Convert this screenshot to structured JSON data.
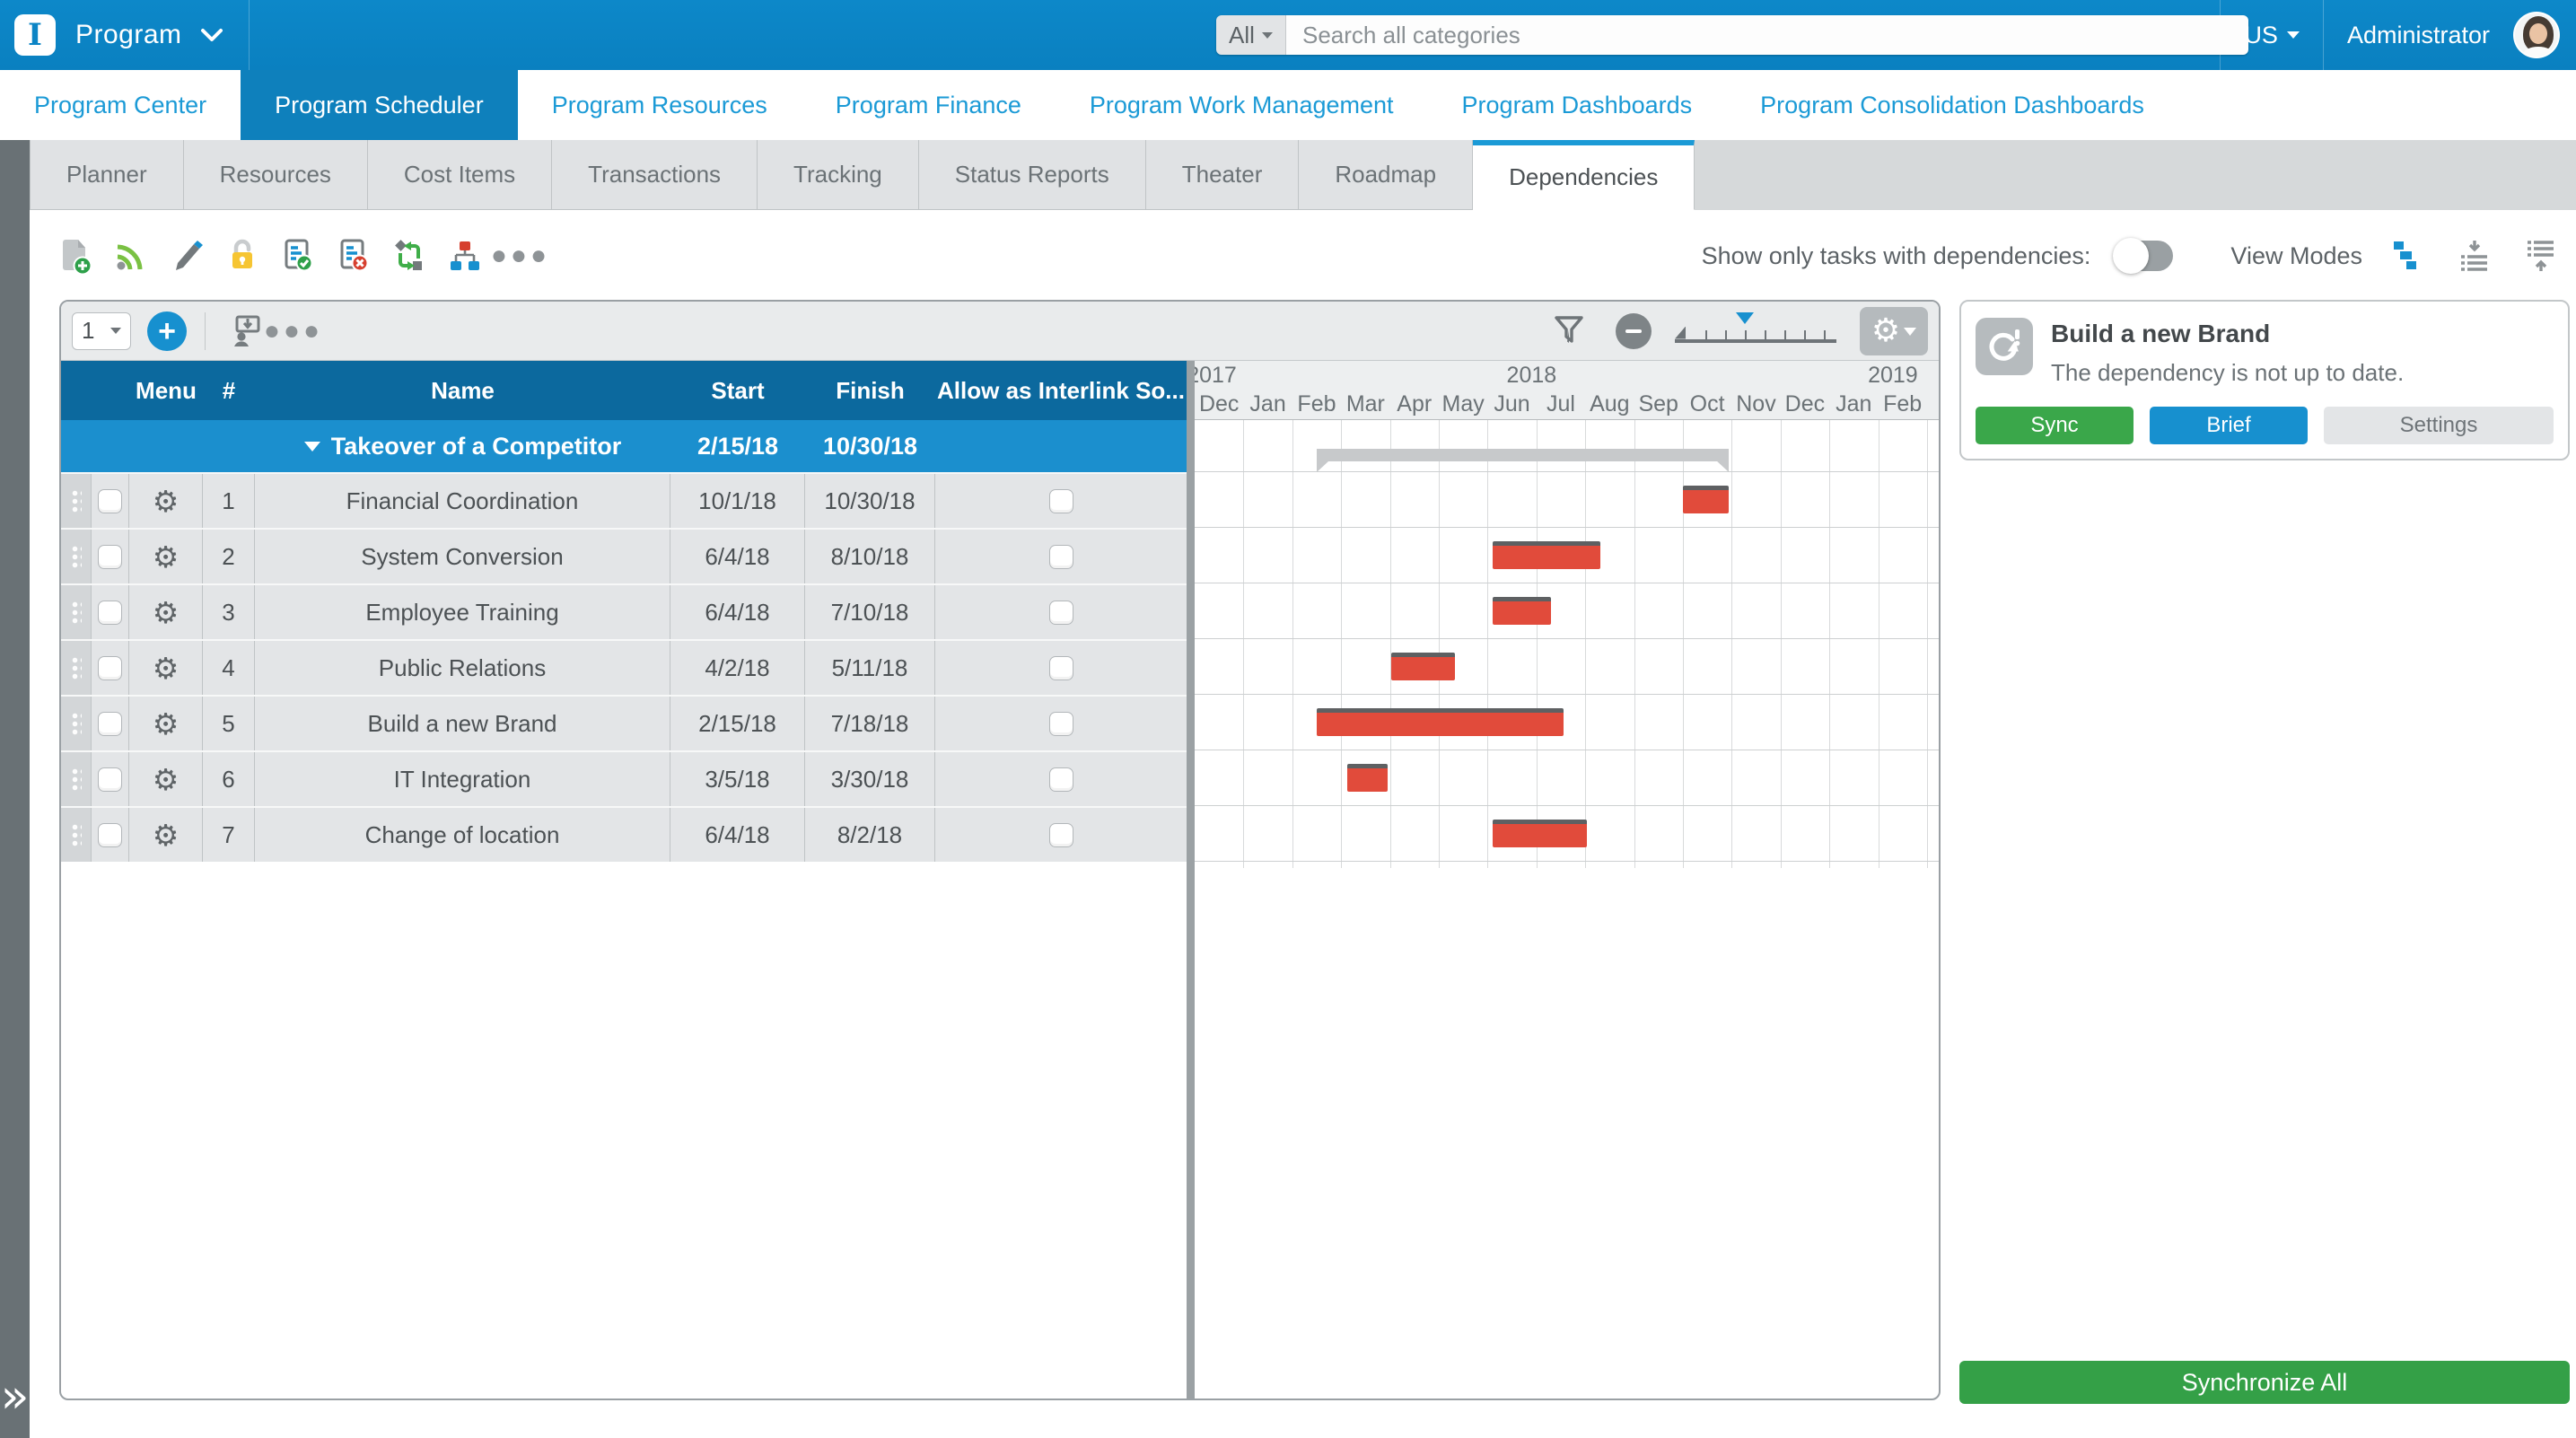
{
  "topbar": {
    "app": "Program",
    "search_scope": "All",
    "search_placeholder": "Search all categories",
    "locale": "US",
    "user": "Administrator",
    "icons": [
      "app-logo",
      "chevron-down-icon",
      "scope-caret-icon",
      "locale-caret-icon",
      "avatar"
    ]
  },
  "nav": {
    "tabs": [
      {
        "label": "Program Center",
        "active": false
      },
      {
        "label": "Program Scheduler",
        "active": true
      },
      {
        "label": "Program Resources",
        "active": false
      },
      {
        "label": "Program Finance",
        "active": false
      },
      {
        "label": "Program Work Management",
        "active": false
      },
      {
        "label": "Program Dashboards",
        "active": false
      },
      {
        "label": "Program Consolidation Dashboards",
        "active": false
      }
    ]
  },
  "subnav": {
    "tabs": [
      {
        "label": "Planner",
        "active": false
      },
      {
        "label": "Resources",
        "active": false
      },
      {
        "label": "Cost Items",
        "active": false
      },
      {
        "label": "Transactions",
        "active": false
      },
      {
        "label": "Tracking",
        "active": false
      },
      {
        "label": "Status Reports",
        "active": false
      },
      {
        "label": "Theater",
        "active": false
      },
      {
        "label": "Roadmap",
        "active": false
      },
      {
        "label": "Dependencies",
        "active": true
      }
    ]
  },
  "toolbar": {
    "icons": [
      "add-document-icon",
      "feed-icon",
      "edit-pencil-icon",
      "lock-icon",
      "approve-document-icon",
      "reject-document-icon",
      "reorder-icon",
      "hierarchy-icon",
      "more-icon"
    ],
    "show_only_label": "Show only tasks with dependencies:",
    "show_only_on": false,
    "view_modes_label": "View Modes",
    "view_mode_icons": [
      "gantt-view-icon",
      "import-baseline-icon",
      "export-baseline-icon"
    ]
  },
  "grid_toolbar": {
    "level_selector": "1",
    "icons": [
      "add-button",
      "import-user-icon",
      "more-icon",
      "filter-funnel-icon",
      "zoom-out-icon",
      "zoom-slider",
      "gantt-settings-gear-icon"
    ]
  },
  "table": {
    "columns": {
      "menu": "Menu",
      "num": "#",
      "name": "Name",
      "start": "Start",
      "finish": "Finish",
      "allow": "Allow as Interlink So..."
    },
    "group_row": {
      "name": "Takeover of a Competitor",
      "start": "2/15/18",
      "finish": "10/30/18",
      "gantt_start": 2.5,
      "gantt_end": 10.94
    },
    "rows": [
      {
        "num": "1",
        "name": "Financial Coordination",
        "start": "10/1/18",
        "finish": "10/30/18",
        "allow": false,
        "gantt_start": 10.0,
        "gantt_end": 10.94
      },
      {
        "num": "2",
        "name": "System Conversion",
        "start": "6/4/18",
        "finish": "8/10/18",
        "allow": false,
        "gantt_start": 6.1,
        "gantt_end": 8.31
      },
      {
        "num": "3",
        "name": "Employee Training",
        "start": "6/4/18",
        "finish": "7/10/18",
        "allow": false,
        "gantt_start": 6.1,
        "gantt_end": 7.3
      },
      {
        "num": "4",
        "name": "Public Relations",
        "start": "4/2/18",
        "finish": "5/11/18",
        "allow": false,
        "gantt_start": 4.03,
        "gantt_end": 5.33
      },
      {
        "num": "5",
        "name": "Build a new Brand",
        "start": "2/15/18",
        "finish": "7/18/18",
        "allow": false,
        "gantt_start": 2.5,
        "gantt_end": 7.56
      },
      {
        "num": "6",
        "name": "IT Integration",
        "start": "3/5/18",
        "finish": "3/30/18",
        "allow": false,
        "gantt_start": 3.13,
        "gantt_end": 3.95
      },
      {
        "num": "7",
        "name": "Change of location",
        "start": "6/4/18",
        "finish": "8/2/18",
        "allow": false,
        "gantt_start": 6.1,
        "gantt_end": 8.04
      }
    ]
  },
  "gantt": {
    "years": [
      {
        "label": "2017",
        "center_month": 0.35
      },
      {
        "label": "2018",
        "center_month": 6.9
      },
      {
        "label": "2019",
        "center_month": 14.3
      }
    ],
    "months": [
      "Dec",
      "Jan",
      "Feb",
      "Mar",
      "Apr",
      "May",
      "Jun",
      "Jul",
      "Aug",
      "Sep",
      "Oct",
      "Nov",
      "Dec",
      "Jan",
      "Feb"
    ],
    "bar_color": "#e14b3b",
    "summary_color": "#c7c9cb"
  },
  "dependency_panel": {
    "icon": "sync-alert-icon",
    "title": "Build a new Brand",
    "message": "The dependency is not up to date.",
    "buttons": [
      {
        "label": "Sync",
        "style": "green"
      },
      {
        "label": "Brief",
        "style": "blue"
      },
      {
        "label": "Settings",
        "style": "gray"
      }
    ],
    "sync_all_label": "Synchronize All"
  },
  "colors": {
    "topbar_blue": "#0b84c5",
    "accent_blue": "#1790cf",
    "table_header_blue": "#0c699e",
    "group_row_blue": "#1b8fce",
    "bar_red": "#e14b3b",
    "green": "#34a047"
  }
}
